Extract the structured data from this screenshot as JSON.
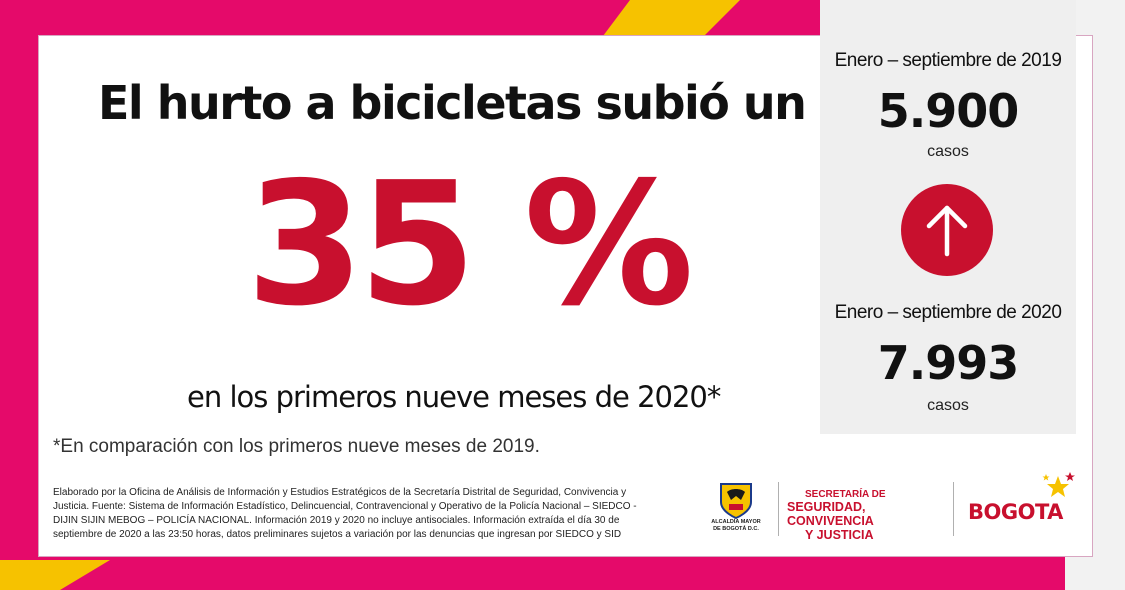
{
  "headline": "El hurto a bicicletas subió un",
  "percent": "35 %",
  "subline": "en los primeros nueve meses de 2020*",
  "footnote": "*En comparación con los primeros nueve meses de 2019.",
  "source": "Elaborado por la Oficina de Análisis de Información y Estudios Estratégicos de la Secretaría Distrital de Seguridad, Convivencia y Justicia. Fuente: Sistema de Información Estadístico, Delincuencial, Contravencional y Operativo de la Policía Nacional – SIEDCO - DIJIN SIJIN MEBOG – POLICÍA NACIONAL. Información 2019 y 2020 no incluye antisociales. Información extraída el día 30 de septiembre de 2020 a las 23:50 horas, datos preliminares sujetos a variación por las denuncias que ingresan por SIEDCO y SID",
  "panel": {
    "period_2019": "Enero – septiembre de 2019",
    "count_2019": "5.900",
    "unit_2019": "casos",
    "arrow_icon": "arrow-up-icon",
    "period_2020": "Enero – septiembre de 2020",
    "count_2020": "7.993",
    "unit_2020": "casos"
  },
  "logos": {
    "alcaldia_line1": "ALCALDÍA MAYOR",
    "alcaldia_line2": "DE BOGOTÁ D.C.",
    "secretaria_small": "SECRETARÍA DE",
    "secretaria_line1": "SEGURIDAD, CONVIVENCIA",
    "secretaria_line2": "Y JUSTICIA",
    "bogota": "BOGOTA"
  },
  "colors": {
    "accent_red": "#c8102e",
    "frame_magenta": "#e50a6a",
    "frame_yellow": "#f6c200"
  }
}
